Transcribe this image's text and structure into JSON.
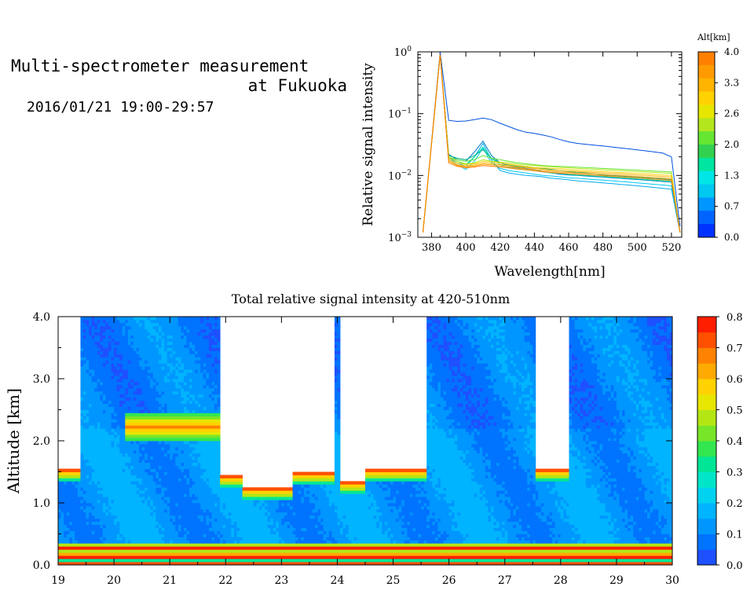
{
  "header": {
    "title_line1": "Multi-spectrometer measurement",
    "title_line2": "at Fukuoka",
    "subtitle": "2016/01/21 19:00-29:57"
  },
  "chart_data": [
    {
      "type": "line",
      "title": "",
      "xlabel": "Wavelength[nm]",
      "ylabel": "Relative signal intensity",
      "yscale": "log",
      "xlim": [
        372,
        526
      ],
      "ylim": [
        0.001,
        1
      ],
      "xticks": [
        "380",
        "400",
        "420",
        "440",
        "460",
        "480",
        "500",
        "520"
      ],
      "yticks": [
        {
          "base": "10",
          "exp": "0"
        },
        {
          "base": "10",
          "exp": "−1"
        },
        {
          "base": "10",
          "exp": "−2"
        },
        {
          "base": "10",
          "exp": "−3"
        }
      ],
      "colorbar": {
        "label": "Alt[km]",
        "ticks": [
          "4.0",
          "3.3",
          "2.6",
          "2.0",
          "1.3",
          "0.7",
          "0.0"
        ],
        "colors": [
          "#ff8000",
          "#ff9b00",
          "#ffb400",
          "#ffd200",
          "#e6e600",
          "#b4e61e",
          "#64e632",
          "#32d250",
          "#00e6a0",
          "#00e6e6",
          "#00c8f0",
          "#0096ff",
          "#0064ff",
          "#0032ff"
        ]
      },
      "x": [
        375,
        385,
        390,
        395,
        400,
        405,
        410,
        415,
        420,
        425,
        430,
        435,
        440,
        445,
        450,
        455,
        460,
        465,
        470,
        475,
        480,
        485,
        490,
        495,
        500,
        505,
        510,
        515,
        520,
        525
      ],
      "series": [
        {
          "color": "#0050e0",
          "values": [
            0.0012,
            1.0,
            0.078,
            0.075,
            0.076,
            0.08,
            0.085,
            0.08,
            0.07,
            0.062,
            0.055,
            0.05,
            0.048,
            0.045,
            0.042,
            0.038,
            0.035,
            0.033,
            0.032,
            0.031,
            0.03,
            0.029,
            0.028,
            0.027,
            0.026,
            0.025,
            0.024,
            0.023,
            0.02,
            0.0015
          ]
        },
        {
          "color": "#00aaee",
          "values": [
            0.0012,
            0.9,
            0.02,
            0.016,
            0.014,
            0.02,
            0.033,
            0.018,
            0.012,
            0.011,
            0.0105,
            0.01,
            0.0098,
            0.0095,
            0.009,
            0.0088,
            0.0085,
            0.0082,
            0.008,
            0.0078,
            0.0076,
            0.0074,
            0.0072,
            0.007,
            0.0068,
            0.0066,
            0.0064,
            0.0062,
            0.006,
            0.0012
          ]
        },
        {
          "color": "#00c8f0",
          "values": [
            0.0012,
            0.9,
            0.019,
            0.015,
            0.0125,
            0.017,
            0.028,
            0.016,
            0.013,
            0.012,
            0.0115,
            0.011,
            0.0105,
            0.01,
            0.0098,
            0.0095,
            0.0092,
            0.009,
            0.0088,
            0.0086,
            0.0084,
            0.0082,
            0.008,
            0.0078,
            0.0076,
            0.0074,
            0.0072,
            0.007,
            0.0068,
            0.0012
          ]
        },
        {
          "color": "#0078c8",
          "values": [
            0.0012,
            0.9,
            0.022,
            0.018,
            0.017,
            0.024,
            0.036,
            0.021,
            0.016,
            0.0145,
            0.0135,
            0.013,
            0.0125,
            0.0115,
            0.011,
            0.0105,
            0.0102,
            0.01,
            0.0098,
            0.0096,
            0.0094,
            0.0092,
            0.009,
            0.0088,
            0.0086,
            0.0084,
            0.0082,
            0.008,
            0.0078,
            0.0012
          ]
        },
        {
          "color": "#00e6a0",
          "values": [
            0.0012,
            0.9,
            0.02,
            0.017,
            0.015,
            0.02,
            0.029,
            0.019,
            0.015,
            0.0135,
            0.0128,
            0.0124,
            0.012,
            0.0115,
            0.011,
            0.0108,
            0.0104,
            0.0102,
            0.01,
            0.0098,
            0.0096,
            0.0094,
            0.0092,
            0.009,
            0.0088,
            0.0086,
            0.0084,
            0.0082,
            0.008,
            0.0012
          ]
        },
        {
          "color": "#00b080",
          "values": [
            0.0012,
            0.9,
            0.021,
            0.019,
            0.018,
            0.021,
            0.026,
            0.019,
            0.016,
            0.015,
            0.0142,
            0.0138,
            0.0135,
            0.013,
            0.0125,
            0.012,
            0.0116,
            0.0112,
            0.011,
            0.0106,
            0.0102,
            0.01,
            0.0098,
            0.0096,
            0.0094,
            0.0092,
            0.009,
            0.0088,
            0.0086,
            0.0012
          ]
        },
        {
          "color": "#64e632",
          "values": [
            0.0012,
            0.9,
            0.02,
            0.018,
            0.017,
            0.018,
            0.021,
            0.019,
            0.018,
            0.017,
            0.016,
            0.0155,
            0.015,
            0.0145,
            0.0142,
            0.014,
            0.0138,
            0.0136,
            0.0134,
            0.0132,
            0.013,
            0.0128,
            0.0126,
            0.0124,
            0.0122,
            0.012,
            0.0118,
            0.0116,
            0.0114,
            0.0012
          ]
        },
        {
          "color": "#b4e61e",
          "values": [
            0.0012,
            0.9,
            0.02,
            0.017,
            0.0155,
            0.016,
            0.018,
            0.017,
            0.0165,
            0.016,
            0.0152,
            0.0148,
            0.0145,
            0.014,
            0.0138,
            0.0135,
            0.0133,
            0.013,
            0.0128,
            0.0126,
            0.0124,
            0.0122,
            0.012,
            0.0118,
            0.0116,
            0.0114,
            0.0112,
            0.011,
            0.0108,
            0.0012
          ]
        },
        {
          "color": "#ffd200",
          "values": [
            0.0012,
            0.9,
            0.019,
            0.016,
            0.015,
            0.0155,
            0.017,
            0.0165,
            0.016,
            0.0152,
            0.0145,
            0.014,
            0.0135,
            0.0132,
            0.013,
            0.0128,
            0.0125,
            0.0122,
            0.012,
            0.0118,
            0.0116,
            0.0114,
            0.0112,
            0.011,
            0.0108,
            0.0106,
            0.0104,
            0.0102,
            0.01,
            0.0012
          ]
        },
        {
          "color": "#ffb400",
          "values": [
            0.0012,
            0.9,
            0.018,
            0.015,
            0.0142,
            0.0148,
            0.016,
            0.0155,
            0.015,
            0.0145,
            0.0138,
            0.0134,
            0.013,
            0.0126,
            0.0122,
            0.012,
            0.0118,
            0.0116,
            0.0114,
            0.0112,
            0.011,
            0.0108,
            0.0106,
            0.0104,
            0.0102,
            0.01,
            0.0098,
            0.0096,
            0.0094,
            0.0012
          ]
        },
        {
          "color": "#ff9b00",
          "values": [
            0.0012,
            0.9,
            0.017,
            0.0145,
            0.0138,
            0.0142,
            0.0152,
            0.0148,
            0.0143,
            0.0138,
            0.0132,
            0.0128,
            0.0124,
            0.012,
            0.0117,
            0.0114,
            0.0112,
            0.011,
            0.0108,
            0.0106,
            0.0104,
            0.0102,
            0.01,
            0.0098,
            0.0096,
            0.0094,
            0.0092,
            0.009,
            0.0088,
            0.0012
          ]
        },
        {
          "color": "#ff8000",
          "values": [
            0.0012,
            0.9,
            0.016,
            0.014,
            0.0133,
            0.0137,
            0.0145,
            0.0141,
            0.0137,
            0.0132,
            0.0127,
            0.0123,
            0.0119,
            0.0115,
            0.0112,
            0.0109,
            0.0107,
            0.0105,
            0.0103,
            0.0101,
            0.0099,
            0.0097,
            0.0095,
            0.0093,
            0.0091,
            0.0089,
            0.0087,
            0.0085,
            0.0083,
            0.0012
          ]
        }
      ]
    },
    {
      "type": "heatmap",
      "title": "Total relative signal intensity at 420-510nm",
      "xlabel": "",
      "ylabel": "Altitude [km]",
      "xlim": [
        19,
        30
      ],
      "ylim": [
        0,
        4
      ],
      "xticks": [
        "19",
        "20",
        "21",
        "22",
        "23",
        "24",
        "25",
        "26",
        "27",
        "28",
        "29",
        "30"
      ],
      "yticks": [
        "0.0",
        "1.0",
        "2.0",
        "3.0",
        "4.0"
      ],
      "colorbar": {
        "ticks": [
          "0.8",
          "0.7",
          "0.6",
          "0.5",
          "0.4",
          "0.3",
          "0.2",
          "0.1",
          "0.0"
        ],
        "levels": [
          0.0,
          0.05,
          0.1,
          0.15,
          0.2,
          0.25,
          0.3,
          0.35,
          0.4,
          0.45,
          0.5,
          0.55,
          0.6,
          0.65,
          0.7,
          0.75
        ],
        "colors": [
          "#1e50ff",
          "#0073ff",
          "#0096ff",
          "#00b4ff",
          "#00d2f0",
          "#00e6c8",
          "#00e696",
          "#32e650",
          "#78e628",
          "#b4e614",
          "#e6e600",
          "#ffd200",
          "#ffaa00",
          "#ff8200",
          "#ff5000",
          "#ff1e00"
        ]
      },
      "cloud_regions": [
        {
          "x_start": 19.0,
          "x_end": 19.38,
          "base_km": 1.55
        },
        {
          "x_start": 21.88,
          "x_end": 22.28,
          "base_km": 1.45
        },
        {
          "x_start": 22.28,
          "x_end": 23.2,
          "base_km": 1.25
        },
        {
          "x_start": 23.2,
          "x_end": 23.95,
          "base_km": 1.5
        },
        {
          "x_start": 24.05,
          "x_end": 24.5,
          "base_km": 1.35
        },
        {
          "x_start": 24.5,
          "x_end": 25.6,
          "base_km": 1.55
        },
        {
          "x_start": 27.55,
          "x_end": 28.15,
          "base_km": 1.55
        }
      ],
      "elevated_layer": {
        "x_start": 20.2,
        "x_end": 21.9,
        "base_km": 2.0,
        "top_km": 2.45,
        "max_value": 0.65
      },
      "surface_layer": {
        "top_km": 0.35,
        "max_value": 0.8
      }
    }
  ]
}
